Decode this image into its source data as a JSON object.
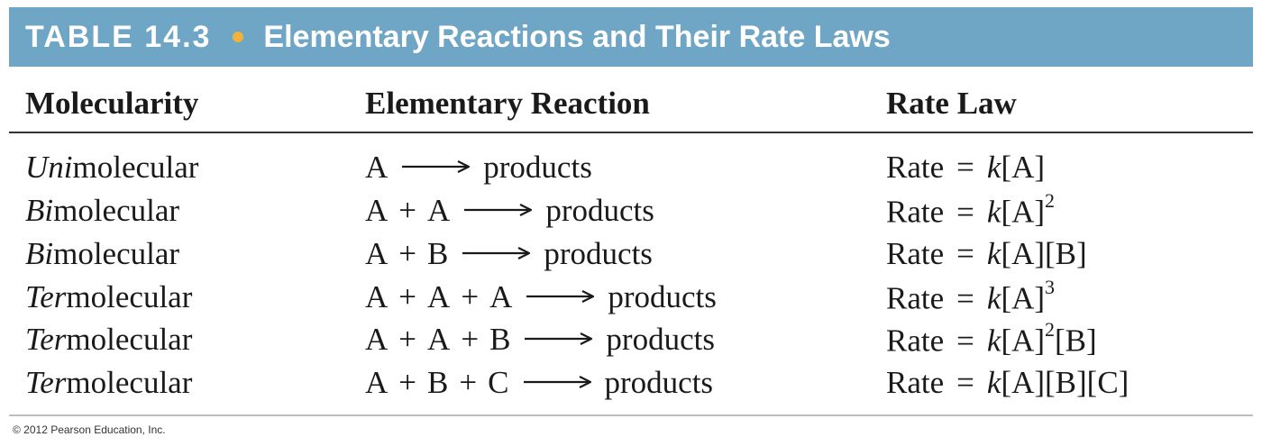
{
  "header": {
    "table_number": "TABLE 14.3",
    "title": "Elementary Reactions and Their Rate Laws"
  },
  "columns": {
    "molecularity": "Molecularity",
    "reaction": "Elementary Reaction",
    "rate_law": "Rate Law"
  },
  "rows": [
    {
      "mol_prefix": "Uni",
      "mol_suffix": "molecular",
      "reactants": [
        "A"
      ],
      "product": "products",
      "rate_label": "Rate",
      "k": "k",
      "rate_expr": "[A]",
      "rate_sup": "",
      "rate_tail": ""
    },
    {
      "mol_prefix": "Bi",
      "mol_suffix": "molecular",
      "reactants": [
        "A",
        "+",
        "A"
      ],
      "product": "products",
      "rate_label": "Rate",
      "k": "k",
      "rate_expr": "[A]",
      "rate_sup": "2",
      "rate_tail": ""
    },
    {
      "mol_prefix": "Bi",
      "mol_suffix": "molecular",
      "reactants": [
        "A",
        "+",
        "B"
      ],
      "product": "products",
      "rate_label": "Rate",
      "k": "k",
      "rate_expr": "[A][B]",
      "rate_sup": "",
      "rate_tail": ""
    },
    {
      "mol_prefix": "Ter",
      "mol_suffix": "molecular",
      "reactants": [
        "A",
        "+",
        "A",
        "+",
        "A"
      ],
      "product": "products",
      "rate_label": "Rate",
      "k": "k",
      "rate_expr": "[A]",
      "rate_sup": "3",
      "rate_tail": ""
    },
    {
      "mol_prefix": "Ter",
      "mol_suffix": "molecular",
      "reactants": [
        "A",
        "+",
        "A",
        "+",
        "B"
      ],
      "product": "products",
      "rate_label": "Rate",
      "k": "k",
      "rate_expr": "[A]",
      "rate_sup": "2",
      "rate_tail": "[B]"
    },
    {
      "mol_prefix": "Ter",
      "mol_suffix": "molecular",
      "reactants": [
        "A",
        "+",
        "B",
        "+",
        "C"
      ],
      "product": "products",
      "rate_label": "Rate",
      "k": "k",
      "rate_expr": "[A][B][C]",
      "rate_sup": "",
      "rate_tail": ""
    }
  ],
  "equals_sign": "=",
  "footer": {
    "copyright": "© 2012 Pearson Education, Inc."
  },
  "colors": {
    "header_band": "#6fa6c6",
    "header_dot": "#f0b23a",
    "header_text": "#ffffff"
  },
  "icons": {
    "reaction_arrow": "long-right-arrow-icon"
  }
}
